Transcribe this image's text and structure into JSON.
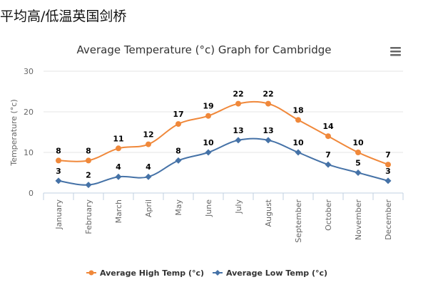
{
  "page": {
    "heading": "平均高/低温英国剑桥"
  },
  "chart_data": {
    "type": "line",
    "title": "Average Temperature (°c) Graph for Cambridge",
    "xlabel": "",
    "ylabel": "Temperature (°c)",
    "ylim": [
      0,
      30
    ],
    "yticks": [
      0,
      10,
      20,
      30
    ],
    "grid": true,
    "legend_position": "bottom",
    "categories": [
      "January",
      "February",
      "March",
      "April",
      "May",
      "June",
      "July",
      "August",
      "September",
      "October",
      "November",
      "December"
    ],
    "series": [
      {
        "name": "Average High Temp (°c)",
        "color": "#f0883a",
        "marker": "circle",
        "values": [
          8,
          8,
          11,
          12,
          17,
          19,
          22,
          22,
          18,
          14,
          10,
          7
        ]
      },
      {
        "name": "Average Low Temp (°c)",
        "color": "#4572a7",
        "marker": "diamond",
        "values": [
          3,
          2,
          4,
          4,
          8,
          10,
          13,
          13,
          10,
          7,
          5,
          3
        ]
      }
    ]
  },
  "ui": {
    "menu_icon": "hamburger-menu-icon",
    "colors": {
      "grid": "#e6e6e6",
      "axis": "#c0d0e0",
      "text": "#333333",
      "label": "#000000"
    }
  }
}
